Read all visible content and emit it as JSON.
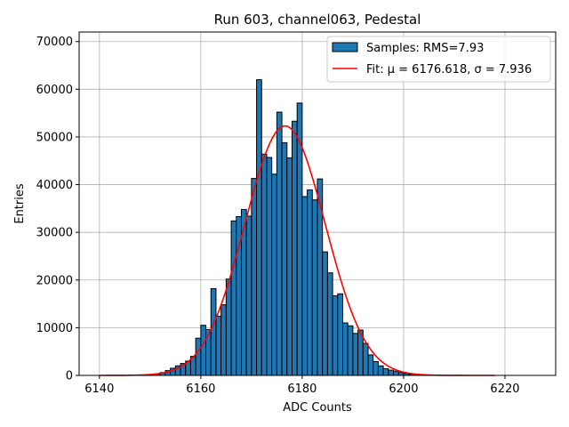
{
  "chart_data": {
    "type": "bar",
    "title": "Run 603, channel063, Pedestal",
    "xlabel": "ADC Counts",
    "ylabel": "Entries",
    "xlim": [
      6136,
      6230
    ],
    "ylim": [
      0,
      72000
    ],
    "x_ticks": [
      6140,
      6160,
      6180,
      6200,
      6220
    ],
    "y_ticks": [
      0,
      10000,
      20000,
      30000,
      40000,
      50000,
      60000,
      70000
    ],
    "x_tick_labels": [
      "6140",
      "6160",
      "6180",
      "6200",
      "6220"
    ],
    "y_tick_labels": [
      "0",
      "10000",
      "20000",
      "30000",
      "40000",
      "50000",
      "60000",
      "70000"
    ],
    "grid": true,
    "legend_position": "top-right",
    "bar_color": "#1f77b4",
    "fit_color": "#ff0000",
    "bin_width": 1,
    "bins": [
      {
        "x": 6151,
        "y": 300
      },
      {
        "x": 6152,
        "y": 600
      },
      {
        "x": 6153,
        "y": 1000
      },
      {
        "x": 6154,
        "y": 1500
      },
      {
        "x": 6155,
        "y": 2000
      },
      {
        "x": 6156,
        "y": 2500
      },
      {
        "x": 6157,
        "y": 3000
      },
      {
        "x": 6158,
        "y": 4000
      },
      {
        "x": 6159,
        "y": 7800
      },
      {
        "x": 6160,
        "y": 10500
      },
      {
        "x": 6161,
        "y": 9600
      },
      {
        "x": 6162,
        "y": 18200
      },
      {
        "x": 6163,
        "y": 12400
      },
      {
        "x": 6164,
        "y": 14800
      },
      {
        "x": 6165,
        "y": 20200
      },
      {
        "x": 6166,
        "y": 32400
      },
      {
        "x": 6167,
        "y": 33300
      },
      {
        "x": 6168,
        "y": 34800
      },
      {
        "x": 6169,
        "y": 33400
      },
      {
        "x": 6170,
        "y": 41300
      },
      {
        "x": 6171,
        "y": 62000
      },
      {
        "x": 6172,
        "y": 46400
      },
      {
        "x": 6173,
        "y": 45700
      },
      {
        "x": 6174,
        "y": 42200
      },
      {
        "x": 6175,
        "y": 55200
      },
      {
        "x": 6176,
        "y": 48800
      },
      {
        "x": 6177,
        "y": 45600
      },
      {
        "x": 6178,
        "y": 53300
      },
      {
        "x": 6179,
        "y": 57100
      },
      {
        "x": 6180,
        "y": 37500
      },
      {
        "x": 6181,
        "y": 38900
      },
      {
        "x": 6182,
        "y": 36800
      },
      {
        "x": 6183,
        "y": 41200
      },
      {
        "x": 6184,
        "y": 25900
      },
      {
        "x": 6185,
        "y": 21500
      },
      {
        "x": 6186,
        "y": 16700
      },
      {
        "x": 6187,
        "y": 17100
      },
      {
        "x": 6188,
        "y": 11000
      },
      {
        "x": 6189,
        "y": 10400
      },
      {
        "x": 6190,
        "y": 8800
      },
      {
        "x": 6191,
        "y": 9500
      },
      {
        "x": 6192,
        "y": 6700
      },
      {
        "x": 6193,
        "y": 4300
      },
      {
        "x": 6194,
        "y": 2900
      },
      {
        "x": 6195,
        "y": 2000
      },
      {
        "x": 6196,
        "y": 1400
      },
      {
        "x": 6197,
        "y": 1100
      },
      {
        "x": 6198,
        "y": 900
      },
      {
        "x": 6199,
        "y": 600
      },
      {
        "x": 6200,
        "y": 400
      },
      {
        "x": 6201,
        "y": 200
      },
      {
        "x": 6202,
        "y": 100
      }
    ],
    "fit": {
      "type": "gaussian",
      "mu": 6176.618,
      "sigma": 7.936,
      "amplitude": 52300,
      "x_range": [
        6140,
        6218
      ]
    },
    "legend": [
      {
        "label": "Samples: RMS=7.93",
        "kind": "bar"
      },
      {
        "label": "Fit: μ = 6176.618, σ = 7.936",
        "kind": "line"
      }
    ]
  }
}
